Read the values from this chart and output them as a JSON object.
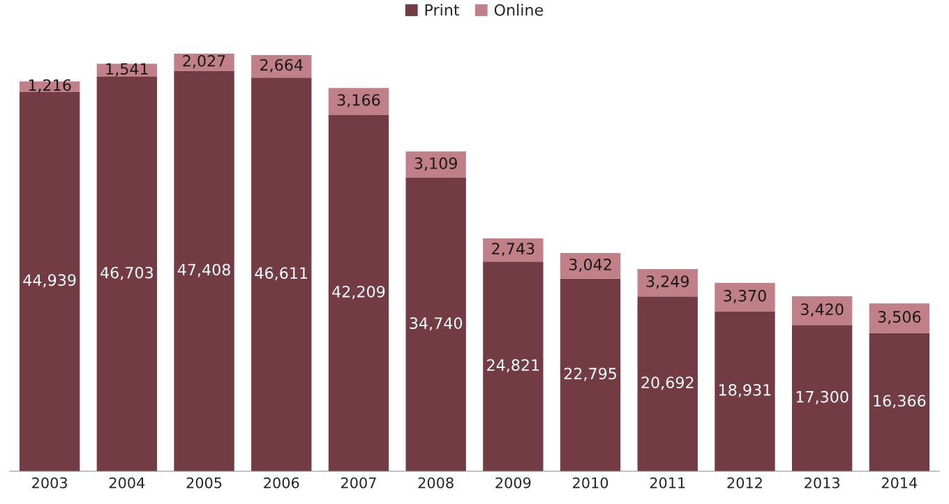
{
  "chart_data": {
    "type": "bar",
    "stacked": true,
    "legend": "top",
    "grid": false,
    "categories": [
      "2003",
      "2004",
      "2005",
      "2006",
      "2007",
      "2008",
      "2009",
      "2010",
      "2011",
      "2012",
      "2013",
      "2014"
    ],
    "series": [
      {
        "name": "Print",
        "color": "#733c45",
        "values": [
          44939,
          46703,
          47408,
          46611,
          42209,
          34740,
          24821,
          22795,
          20692,
          18931,
          17300,
          16366
        ],
        "value_labels": [
          "44,939",
          "46,703",
          "47,408",
          "46,611",
          "42,209",
          "34,740",
          "24,821",
          "22,795",
          "20,692",
          "18,931",
          "17,300",
          "16,366"
        ]
      },
      {
        "name": "Online",
        "color": "#c17f88",
        "values": [
          1216,
          1541,
          2027,
          2664,
          3166,
          3109,
          2743,
          3042,
          3249,
          3370,
          3420,
          3506
        ],
        "value_labels": [
          "1,216",
          "1,541",
          "2,027",
          "2,664",
          "3,166",
          "3,109",
          "2,743",
          "3,042",
          "3,249",
          "3,370",
          "3,420",
          "3,506"
        ]
      }
    ]
  }
}
